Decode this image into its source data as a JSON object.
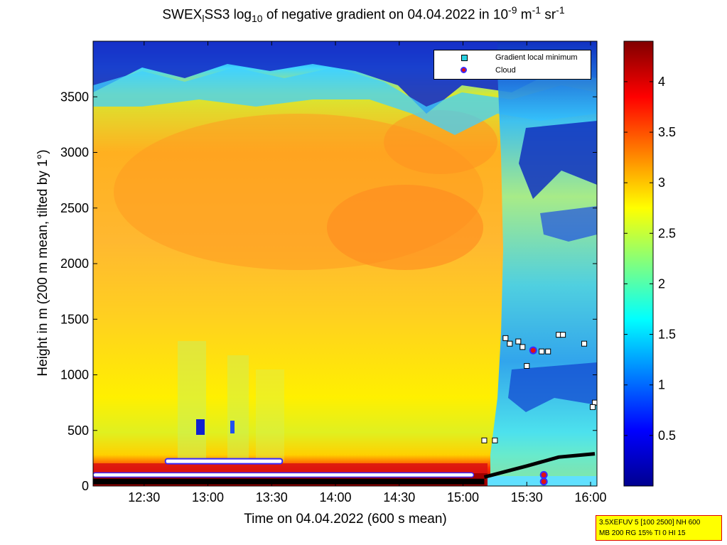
{
  "title": {
    "prefix": "SWEX",
    "sub1": "l",
    "mid1": "SS3 log",
    "sub2": "10",
    "mid2": " of negative gradient on 04.04.2022 in 10",
    "sup1": "-9",
    "mid3": " m",
    "sup2": "-1",
    "mid4": " sr",
    "sup3": "-1"
  },
  "legend": {
    "items": [
      {
        "label": "Gradient local minimum",
        "marker": "square",
        "color": "#2ad0e0"
      },
      {
        "label": "Cloud",
        "marker": "dot",
        "color": "#e01010"
      }
    ]
  },
  "info_box": {
    "line1": "3.5XEFUV 5 [100 2500] NH 600",
    "line2": "MB 200 RG 15% TI 0 HI 15"
  },
  "chart_data": {
    "type": "heatmap",
    "xlabel": "Time on 04.04.2022 (600 s mean)",
    "ylabel": "Height in m (200 m mean, tilted by 1°)",
    "x_range": [
      "12:06",
      "16:03"
    ],
    "ylim": [
      0,
      4000
    ],
    "x_ticks": [
      "12:30",
      "13:00",
      "13:30",
      "14:00",
      "14:30",
      "15:00",
      "15:30",
      "16:00"
    ],
    "y_ticks": [
      0,
      500,
      1000,
      1500,
      2000,
      2500,
      3000,
      3500
    ],
    "colorbar": {
      "range": [
        0,
        4.4
      ],
      "ticks": [
        "0.5",
        "1",
        "1.5",
        "2",
        "2.5",
        "3",
        "3.5",
        "4"
      ],
      "colormap": "jet"
    },
    "profile_regions": [
      {
        "time_from": "12:06",
        "time_to": "15:12",
        "height_from": 200,
        "height_to": 3500,
        "value": 2.9,
        "note": "broad yellow-orange layer"
      },
      {
        "time_from": "12:06",
        "time_to": "15:12",
        "height_from": 0,
        "height_to": 200,
        "value": 4.2,
        "note": "red surface band"
      },
      {
        "time_from": "15:12",
        "time_to": "16:03",
        "height_from": 0,
        "height_to": 2000,
        "value": 1.4,
        "note": "cyan / light blue region"
      },
      {
        "time_from": "12:06",
        "time_to": "16:03",
        "height_from": 3500,
        "height_to": 4000,
        "value": 0.3,
        "note": "dark blue upper region"
      }
    ],
    "cloud_points": [
      {
        "time": "15:33",
        "height": 1220
      },
      {
        "time": "15:38",
        "height": 100
      },
      {
        "time": "15:38",
        "height": 40
      }
    ],
    "gradient_minimum_points": [
      {
        "time": "15:20",
        "height": 1330
      },
      {
        "time": "15:22",
        "height": 1280
      },
      {
        "time": "15:26",
        "height": 1300
      },
      {
        "time": "15:28",
        "height": 1250
      },
      {
        "time": "15:33",
        "height": 1220
      },
      {
        "time": "15:37",
        "height": 1210
      },
      {
        "time": "15:40",
        "height": 1210
      },
      {
        "time": "15:30",
        "height": 1080
      },
      {
        "time": "15:45",
        "height": 1360
      },
      {
        "time": "15:47",
        "height": 1360
      },
      {
        "time": "15:57",
        "height": 1280
      },
      {
        "time": "16:02",
        "height": 750
      },
      {
        "time": "16:01",
        "height": 710
      },
      {
        "time": "15:10",
        "height": 410
      },
      {
        "time": "15:15",
        "height": 410
      }
    ]
  }
}
